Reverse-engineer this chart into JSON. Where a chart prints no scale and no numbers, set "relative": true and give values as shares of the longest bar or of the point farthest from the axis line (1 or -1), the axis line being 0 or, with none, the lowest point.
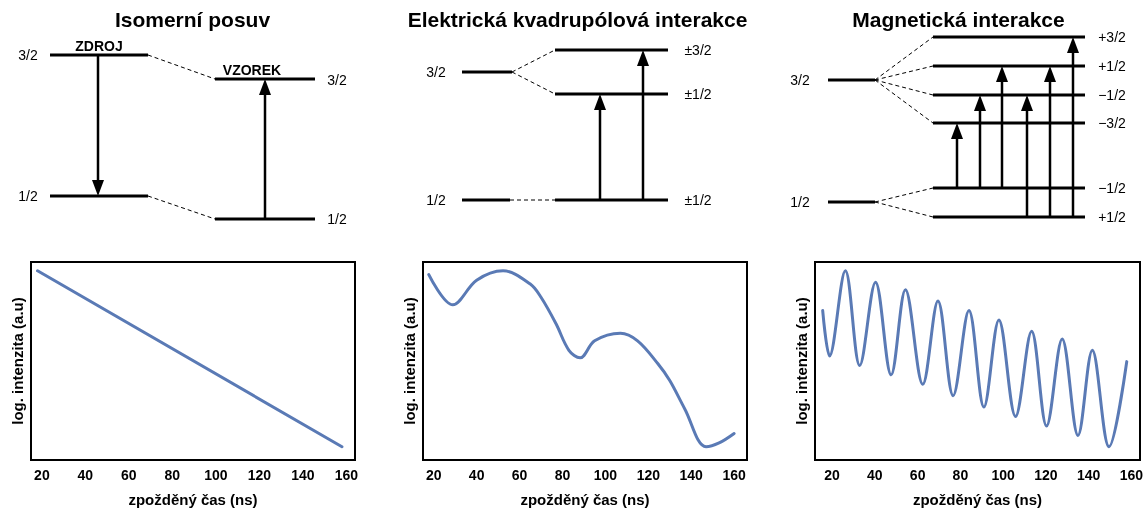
{
  "chart_data": [
    {
      "type": "line",
      "title": "Isomerní posuv",
      "xlabel": "zpožděný čas (ns)",
      "ylabel": "log. intenzita (a.u)",
      "relative": true,
      "tick_labels": "x",
      "grid": false,
      "marker": "none",
      "line_style": "solid",
      "xlim": [
        15,
        164
      ],
      "xticks": [
        20,
        40,
        60,
        80,
        100,
        120,
        140,
        160
      ],
      "annotations": [
        "3/2",
        "ZDROJ",
        "1/2",
        "VZOREK",
        "3/2",
        "1/2"
      ],
      "series": [
        {
          "color": "#5a7ab5",
          "x": [
            18,
            158
          ],
          "values": [
            1,
            0.07
          ]
        }
      ]
    },
    {
      "type": "line",
      "title": "Elektrická kvadrupólová interakce",
      "xlabel": "zpožděný čas (ns)",
      "ylabel": "log. intenzita (a.u)",
      "relative": true,
      "tick_labels": "x",
      "grid": false,
      "marker": "none",
      "line_style": "solid",
      "xlim": [
        15,
        166
      ],
      "xticks": [
        20,
        40,
        60,
        80,
        100,
        120,
        140,
        160
      ],
      "annotations": [
        "3/2",
        "1/2",
        "±3/2",
        "±1/2",
        "±1/2"
      ],
      "series": [
        {
          "color": "#5a7ab5",
          "x": [
            17.7,
            28.9,
            40,
            52.3,
            65,
            70,
            77,
            83,
            88.2,
            95,
            107,
            115,
            124.4,
            130,
            137,
            146.9,
            153,
            160
          ],
          "values": [
            0.98,
            0.82,
            0.95,
            1,
            0.93,
            0.86,
            0.72,
            0.58,
            0.54,
            0.63,
            0.67,
            0.63,
            0.51,
            0.42,
            0.27,
            0.07,
            0.09,
            0.14
          ]
        }
      ]
    },
    {
      "type": "line",
      "title": "Magnetická interakce",
      "xlabel": "zpožděný čas (ns)",
      "ylabel": "log. intenzita (a.u)",
      "relative": true,
      "tick_labels": "x",
      "grid": false,
      "marker": "none",
      "line_style": "solid",
      "xlim": [
        12,
        164
      ],
      "xticks": [
        20,
        40,
        60,
        80,
        100,
        120,
        140,
        160
      ],
      "annotations": [
        "3/2",
        "1/2",
        "+3/2",
        "+1/2",
        "−1/2",
        "−3/2",
        "−1/2",
        "+1/2"
      ],
      "series": [
        {
          "color": "#5a7ab5",
          "x": [
            15.6,
            18.8,
            26.2,
            32.9,
            40.3,
            47.6,
            54.3,
            62.4,
            69.5,
            76.6,
            84.0,
            91.0,
            98.0,
            105.8,
            113.3,
            120.3,
            127.6,
            135.0,
            141.7,
            149.5,
            157.8
          ],
          "values": [
            0.79,
            0.55,
            1,
            0.5,
            0.94,
            0.45,
            0.9,
            0.4,
            0.84,
            0.34,
            0.79,
            0.28,
            0.74,
            0.23,
            0.68,
            0.18,
            0.64,
            0.13,
            0.58,
            0.07,
            0.52
          ]
        }
      ]
    }
  ]
}
